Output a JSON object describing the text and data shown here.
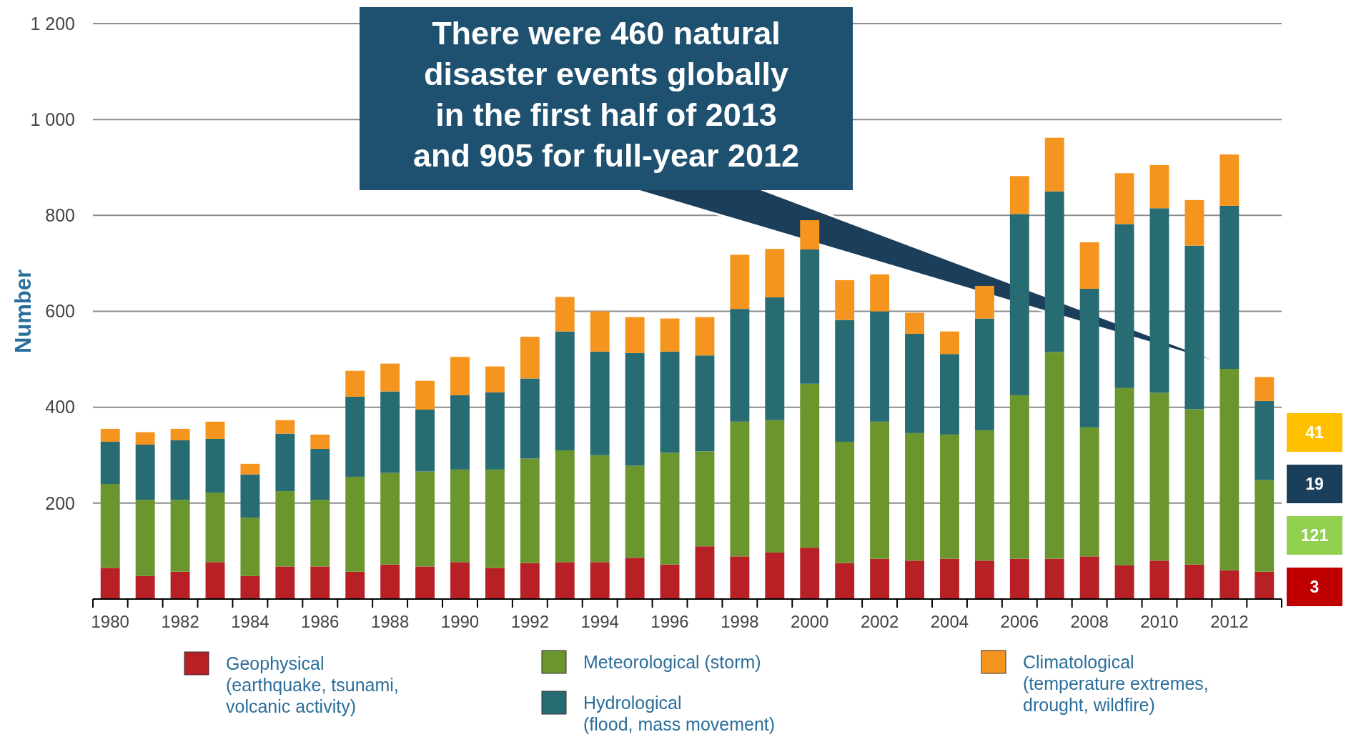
{
  "chart_data": {
    "type": "bar",
    "stacked": true,
    "ylabel": "Number",
    "categories": [
      "1980",
      null,
      "1982",
      null,
      "1984",
      null,
      "1986",
      null,
      "1988",
      null,
      "1990",
      null,
      "1992",
      null,
      "1994",
      null,
      "1996",
      null,
      "1998",
      null,
      "2000",
      null,
      "2002",
      null,
      "2004",
      null,
      "2006",
      null,
      "2008",
      null,
      "2010",
      null,
      "2012",
      null
    ],
    "series": [
      {
        "name": "Geophysical (earthquake, tsunami, volcanic activity)",
        "color": "#b72025",
        "values": [
          65,
          48,
          57,
          77,
          48,
          68,
          68,
          57,
          72,
          68,
          77,
          65,
          75,
          77,
          77,
          86,
          72,
          110,
          89,
          97,
          107,
          75,
          84,
          80,
          84,
          80,
          84,
          84,
          89,
          70,
          80,
          72,
          60,
          57
        ]
      },
      {
        "name": "Meteorological (storm)",
        "color": "#6a962d",
        "values": [
          175,
          159,
          150,
          145,
          122,
          157,
          139,
          198,
          191,
          198,
          193,
          205,
          218,
          233,
          223,
          192,
          233,
          198,
          281,
          276,
          342,
          253,
          286,
          266,
          259,
          272,
          341,
          431,
          269,
          370,
          350,
          324,
          420,
          191
        ]
      },
      {
        "name": "Hydrological (flood, mass movement)",
        "color": "#276b73",
        "values": [
          88,
          115,
          124,
          112,
          90,
          120,
          106,
          167,
          170,
          129,
          155,
          161,
          167,
          248,
          216,
          235,
          211,
          200,
          235,
          256,
          280,
          254,
          230,
          207,
          168,
          233,
          378,
          335,
          289,
          342,
          385,
          341,
          340,
          165
        ]
      },
      {
        "name": "Climatological (temperature extremes, drought, wildfire)",
        "color": "#f5951f",
        "values": [
          27,
          26,
          24,
          36,
          22,
          28,
          30,
          54,
          58,
          60,
          80,
          54,
          87,
          72,
          84,
          75,
          69,
          80,
          113,
          101,
          61,
          83,
          77,
          44,
          47,
          68,
          79,
          112,
          97,
          106,
          90,
          95,
          107,
          50
        ]
      }
    ],
    "ylim": [
      0,
      1200
    ],
    "yticks": [
      {
        "value": 0,
        "label": null
      },
      200,
      400,
      600,
      800,
      {
        "value": 1000,
        "label": "1 000"
      },
      {
        "value": 1200,
        "label": "1 200"
      }
    ],
    "grid": "y",
    "legend": "bottom",
    "annotations": [
      "There were 460 natural disaster events globally in the first half of 2013 and 905 for full-year 2012",
      "41",
      "19",
      "121",
      "3"
    ]
  }
}
